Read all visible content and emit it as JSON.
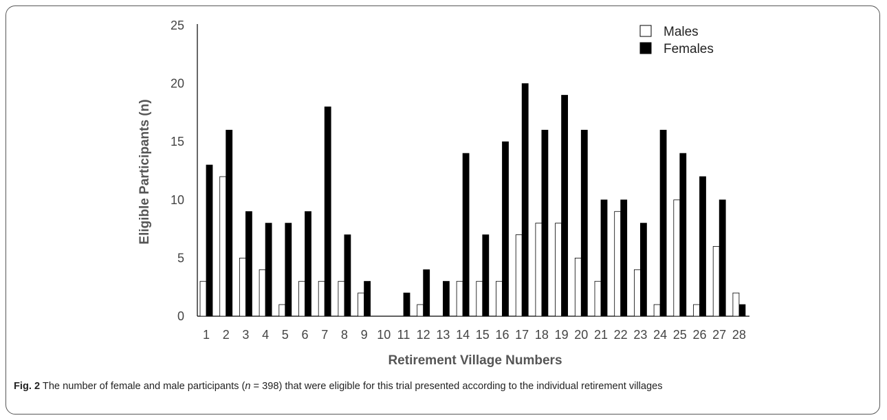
{
  "chart_data": {
    "type": "bar",
    "title": "",
    "xlabel": "Retirement Village Numbers",
    "ylabel": "Eligible Participants (n)",
    "ylim": [
      0,
      25
    ],
    "yticks": [
      "0",
      "5",
      "10",
      "15",
      "20",
      "25"
    ],
    "grid": false,
    "legend_position": "top-right",
    "categories": [
      "1",
      "2",
      "3",
      "4",
      "5",
      "6",
      "7",
      "8",
      "9",
      "10",
      "11",
      "12",
      "13",
      "14",
      "15",
      "16",
      "17",
      "18",
      "19",
      "20",
      "21",
      "22",
      "23",
      "24",
      "25",
      "26",
      "27",
      "28"
    ],
    "series": [
      {
        "name": "Males",
        "color": "#ffffff",
        "values": [
          3,
          12,
          5,
          4,
          1,
          3,
          3,
          3,
          2,
          0,
          0,
          1,
          0,
          3,
          3,
          3,
          7,
          8,
          8,
          5,
          3,
          9,
          4,
          1,
          10,
          1,
          6,
          2
        ]
      },
      {
        "name": "Females",
        "color": "#000000",
        "values": [
          13,
          16,
          9,
          8,
          8,
          9,
          18,
          7,
          3,
          0,
          2,
          4,
          3,
          14,
          7,
          15,
          20,
          16,
          19,
          16,
          10,
          10,
          8,
          16,
          14,
          12,
          10,
          1
        ]
      }
    ]
  },
  "caption": {
    "label": "Fig. 2",
    "text_before": " The number of female and male participants (",
    "n_italic": "n",
    "text_after": " = 398) that were eligible for this trial presented according to the individual retirement villages"
  }
}
